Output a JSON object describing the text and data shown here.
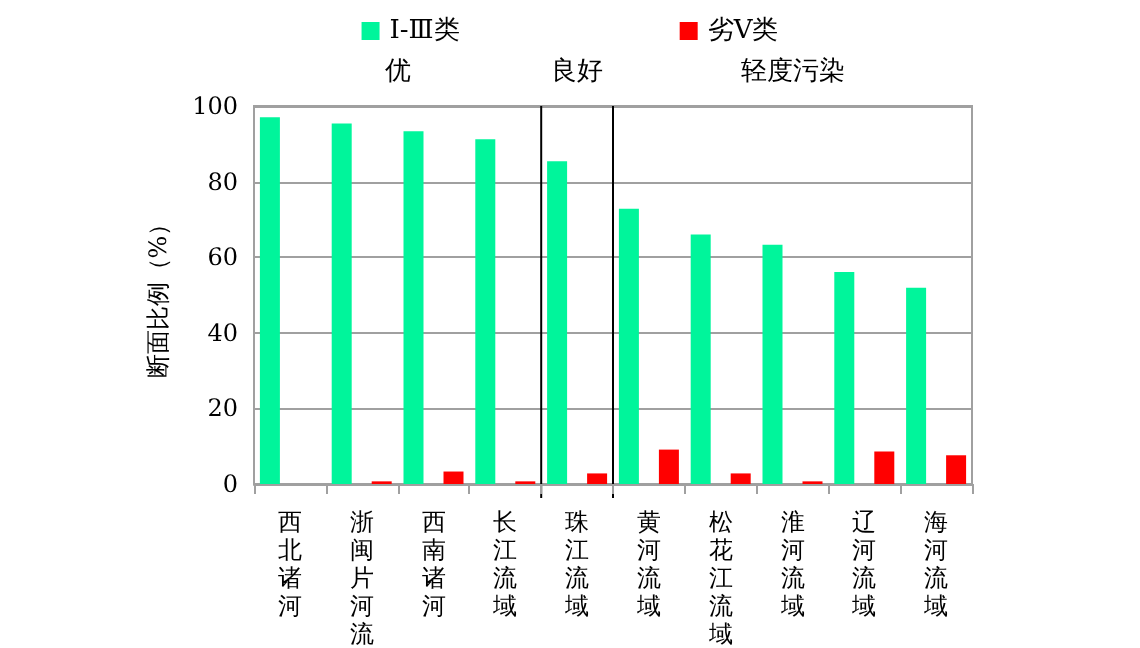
{
  "chart_data": {
    "type": "bar",
    "ylabel": "断面比例（%）",
    "categories": [
      "西北诸河",
      "浙闽片河流",
      "西南诸河",
      "长江流域",
      "珠江流域",
      "黄河流域",
      "松花江流域",
      "淮河流域",
      "辽河流域",
      "海河流域"
    ],
    "series": [
      {
        "name": "Ⅰ-Ⅲ类",
        "color": "#00f59b",
        "values": [
          97,
          95.4,
          93.3,
          91.2,
          85.4,
          72.8,
          66,
          63.3,
          56.1,
          51.9
        ]
      },
      {
        "name": "劣Ⅴ类",
        "color": "#ff0000",
        "values": [
          0,
          0.7,
          3.3,
          0.7,
          2.8,
          9.1,
          2.8,
          0.7,
          8.6,
          7.6
        ]
      }
    ],
    "annotations": [
      "优",
      "良好",
      "轻度污染"
    ],
    "ylim": [
      0,
      100
    ],
    "yticks": [
      0,
      20,
      40,
      60,
      80,
      100
    ],
    "grid": "y",
    "legend": "top"
  }
}
